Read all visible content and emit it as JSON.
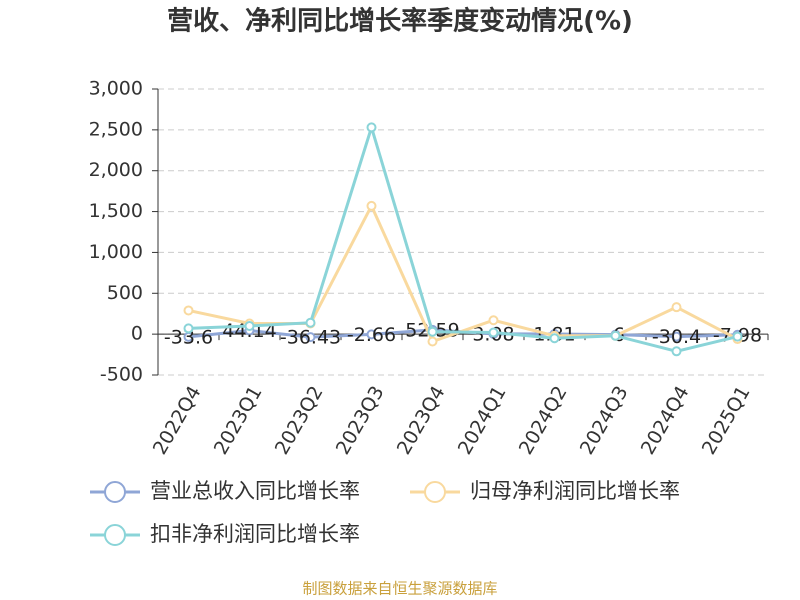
{
  "chart_data": {
    "type": "line",
    "title": "营收、净利同比增长率季度变动情况(%)",
    "categories": [
      "2022Q4",
      "2023Q1",
      "2023Q2",
      "2023Q3",
      "2023Q4",
      "2024Q1",
      "2024Q2",
      "2024Q3",
      "2024Q4",
      "2025Q1"
    ],
    "series": [
      {
        "name": "营业总收入同比增长率",
        "color": "#8fa6d6",
        "labels": true,
        "values": [
          -33.6,
          44.14,
          -36.43,
          -2.66,
          52.59,
          3.08,
          1.81,
          -6,
          -30.4,
          -7.98
        ]
      },
      {
        "name": "归母净利润同比增长率",
        "color": "#f9d99e",
        "values": [
          290,
          130,
          130,
          1570,
          -90,
          170,
          -20,
          -20,
          330,
          -60
        ]
      },
      {
        "name": "扣非净利润同比增长率",
        "color": "#8ad4d8",
        "values": [
          70,
          100,
          140,
          2530,
          30,
          20,
          -50,
          -20,
          -210,
          -30
        ]
      }
    ],
    "ylim": [
      -500,
      3000
    ],
    "yticks": [
      -500,
      0,
      500,
      {
        "value": 1000,
        "label": "1,000"
      },
      {
        "value": 1500,
        "label": "1,500"
      },
      {
        "value": 2000,
        "label": "2,000"
      },
      {
        "value": 2500,
        "label": "2,500"
      },
      {
        "value": 3000,
        "label": "3,000"
      }
    ],
    "grid": true,
    "source": "制图数据来自恒生聚源数据库"
  }
}
